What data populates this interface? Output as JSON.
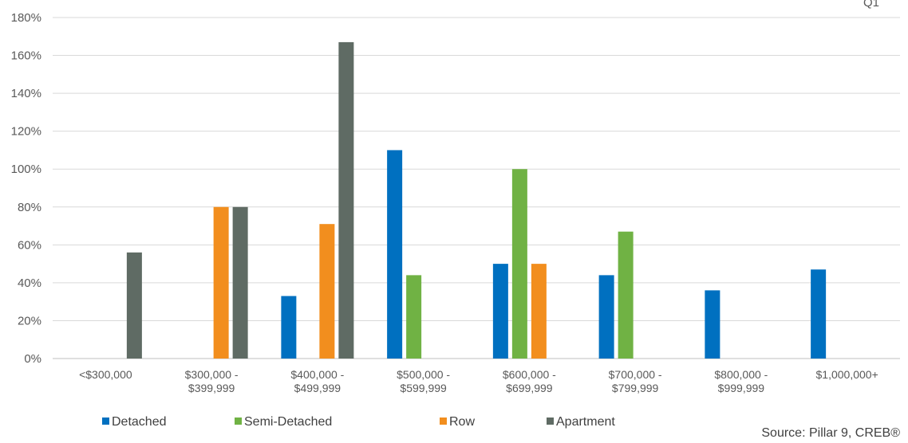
{
  "chart_data": {
    "type": "bar",
    "title": "",
    "corner_label": "Q1",
    "xlabel": "",
    "ylabel": "",
    "ylim": [
      0,
      180
    ],
    "y_ticks": [
      "0%",
      "20%",
      "40%",
      "60%",
      "80%",
      "100%",
      "120%",
      "140%",
      "160%",
      "180%"
    ],
    "y_tick_values": [
      0,
      20,
      40,
      60,
      80,
      100,
      120,
      140,
      160,
      180
    ],
    "grid": true,
    "legend_position": "bottom",
    "categories": [
      [
        "<$300,000"
      ],
      [
        "$300,000 -",
        "$399,999"
      ],
      [
        "$400,000 -",
        "$499,999"
      ],
      [
        "$500,000 -",
        "$599,999"
      ],
      [
        "$600,000 -",
        "$699,999"
      ],
      [
        "$700,000 -",
        "$799,999"
      ],
      [
        "$800,000 -",
        "$999,999"
      ],
      [
        "$1,000,000+"
      ]
    ],
    "series": [
      {
        "name": "Detached",
        "color": "#0070C0",
        "values": [
          null,
          null,
          33,
          110,
          50,
          44,
          36,
          47
        ]
      },
      {
        "name": "Semi-Detached",
        "color": "#70B244",
        "values": [
          null,
          null,
          null,
          44,
          100,
          67,
          null,
          null
        ]
      },
      {
        "name": "Row",
        "color": "#F28E1E",
        "values": [
          null,
          80,
          71,
          null,
          50,
          null,
          null,
          null
        ]
      },
      {
        "name": "Apartment",
        "color": "#5F6B64",
        "values": [
          56,
          80,
          167,
          null,
          null,
          null,
          null,
          null
        ]
      }
    ],
    "source": "Source: Pillar 9, CREB®"
  }
}
